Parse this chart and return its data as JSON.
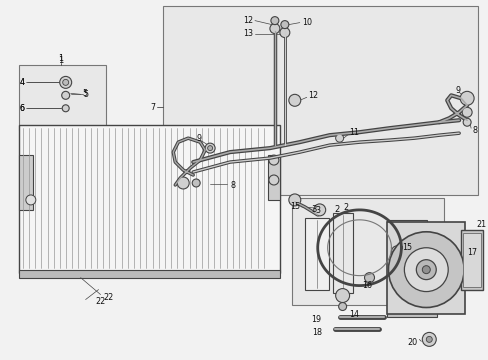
{
  "bg": "#f2f2f2",
  "box_bg": "#e8e8e8",
  "line_dark": "#444444",
  "line_mid": "#777777",
  "line_light": "#aaaaaa",
  "white": "#ffffff",
  "condenser_bg": "#f8f8f8",
  "fin_color": "#888888",
  "text_color": "#111111",
  "fs": 6.0,
  "fig_w": 4.89,
  "fig_h": 3.6,
  "dpi": 100
}
